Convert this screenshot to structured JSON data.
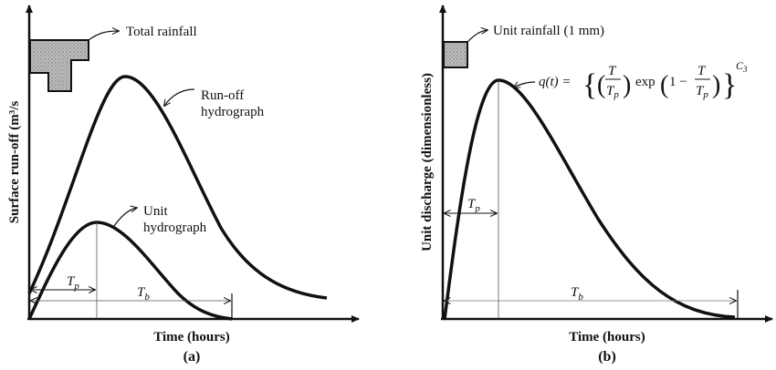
{
  "panel_a": {
    "label": "(a)",
    "y_axis_title": "Surface run-off (m³/s",
    "x_axis_title": "Time (hours)",
    "rainfall_label": "Total rainfall",
    "runoff_label_line1": "Run-off",
    "runoff_label_line2": "hydrograph",
    "unit_label_line1": "Unit",
    "unit_label_line2": "hydrograph",
    "tp_symbol": "T",
    "tp_subscript": "p",
    "tb_symbol": "T",
    "tb_subscript": "b"
  },
  "panel_b": {
    "label": "(b)",
    "y_axis_title": "Unit discharge (dimensionless)",
    "x_axis_title": "Time (hours)",
    "rainfall_label": "Unit rainfall (1 mm)",
    "equation_lhs": "q(t) =",
    "equation_exp": "exp",
    "equation_one_minus": "1 −",
    "equation_T": "T",
    "equation_Tp": "T",
    "equation_Tp_sub": "p",
    "equation_power": "C",
    "equation_power_sub": "3",
    "tp_symbol": "T",
    "tp_subscript": "p",
    "tb_symbol": "T",
    "tb_subscript": "b"
  }
}
